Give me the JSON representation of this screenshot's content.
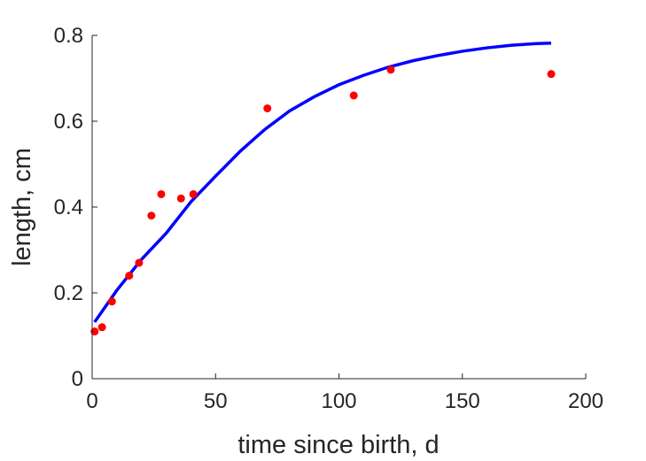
{
  "chart_data": {
    "type": "scatter",
    "title": "",
    "xlabel": "time since birth, d",
    "ylabel": "length, cm",
    "xlim": [
      0,
      200
    ],
    "ylim": [
      0,
      0.8
    ],
    "xticks": [
      0,
      50,
      100,
      150,
      200
    ],
    "yticks": [
      0,
      0.2,
      0.4,
      0.6,
      0.8
    ],
    "xtick_labels": [
      "0",
      "50",
      "100",
      "150",
      "200"
    ],
    "ytick_labels": [
      "0",
      "0.2",
      "0.4",
      "0.6",
      "0.8"
    ],
    "grid": false,
    "box": "left-bottom",
    "series": [
      {
        "kind": "points",
        "color": "#ff0000",
        "x": [
          1,
          4,
          8,
          15,
          19,
          24,
          28,
          36,
          41,
          71,
          106,
          121,
          186
        ],
        "y": [
          0.11,
          0.12,
          0.18,
          0.24,
          0.27,
          0.38,
          0.43,
          0.42,
          0.43,
          0.63,
          0.66,
          0.72,
          0.71
        ]
      },
      {
        "kind": "line",
        "color": "#0000ff",
        "x": [
          1,
          10,
          20,
          30,
          40,
          50,
          60,
          70,
          80,
          90,
          100,
          110,
          120,
          130,
          140,
          150,
          160,
          170,
          180,
          186
        ],
        "y": [
          0.132,
          0.206,
          0.278,
          0.339,
          0.412,
          0.472,
          0.53,
          0.581,
          0.624,
          0.657,
          0.685,
          0.707,
          0.726,
          0.741,
          0.753,
          0.763,
          0.771,
          0.777,
          0.781,
          0.782
        ]
      }
    ]
  }
}
